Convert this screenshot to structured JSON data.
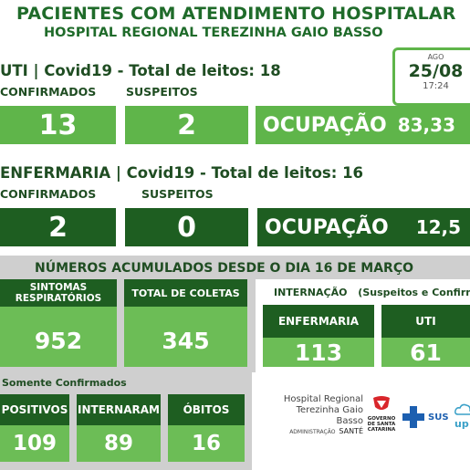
{
  "header": {
    "title": "PACIENTES COM ATENDIMENTO HOSPITALAR",
    "subtitle": "HOSPITAL REGIONAL TEREZINHA GAIO BASSO"
  },
  "date_box": {
    "month": "AGO",
    "date": "25/08",
    "time": "17:24"
  },
  "uti": {
    "title": "UTI | Covid19 - Total de leitos: 18",
    "confirmed_label": "CONFIRMADOS",
    "suspected_label": "SUSPEITOS",
    "confirmed": "13",
    "suspected": "2",
    "occupancy_label": "OCUPAÇÃO",
    "occupancy": "83,33"
  },
  "enfermaria": {
    "title": "ENFERMARIA | Covid19 - Total de leitos: 16",
    "confirmed_label": "CONFIRMADOS",
    "suspected_label": "SUSPEITOS",
    "confirmed": "2",
    "suspected": "0",
    "occupancy_label": "OCUPAÇÃO",
    "occupancy": "12,5"
  },
  "accumulated": {
    "title": "NÚMEROS ACUMULADOS DESDE O DIA 16 DE MARÇO",
    "sintomas_label_1": "SINTOMAS",
    "sintomas_label_2": "RESPIRATÓRIOS",
    "sintomas": "952",
    "coletas_label": "TOTAL DE COLETAS",
    "coletas": "345",
    "internacao_label": "INTERNAÇÃO",
    "internacao_note": "(Suspeitos e Confirma",
    "int_enf_label": "ENFERMARIA",
    "int_enf": "113",
    "int_uti_label": "UTI",
    "int_uti": "61"
  },
  "confirmed_only": {
    "title": "Somente Confirmados",
    "positivos_label": "POSITIVOS",
    "positivos": "109",
    "internaram_label": "INTERNARAM",
    "internaram": "89",
    "obitos_label": "ÓBITOS",
    "obitos": "16"
  },
  "logos": {
    "hospital_line1": "Hospital Regional",
    "hospital_line2": "Terezinha Gaio Basso",
    "admin": "ADMINISTRAÇÃO",
    "sante": "SANTÉ",
    "gov_line1": "GOVERNO",
    "gov_line2": "DE SANTA",
    "gov_line3": "CATARINA",
    "sus": "SUS",
    "up": "up"
  },
  "colors": {
    "light_green": "#5fb54a",
    "dark_green": "#1e5e21",
    "gray": "#cfcfcf"
  }
}
